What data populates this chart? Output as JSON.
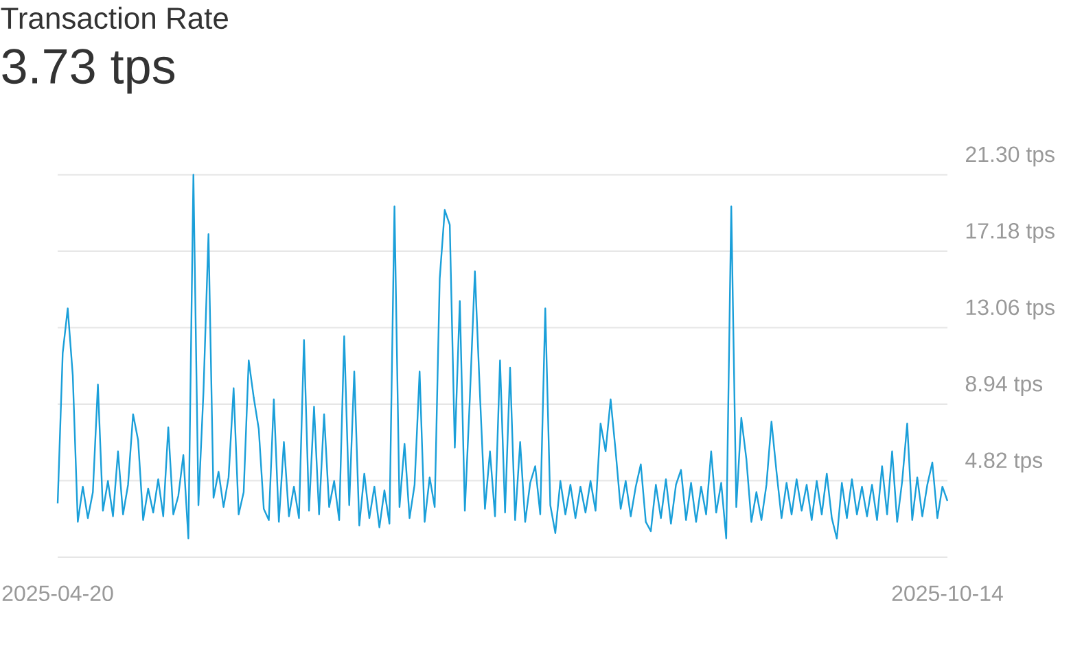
{
  "chart_data": {
    "type": "line",
    "title": "Transaction Rate",
    "subtitle": "3.73 tps",
    "grid": "y",
    "xlim": [
      "2025-04-20",
      "2025-10-14"
    ],
    "xticks": [
      {
        "value": "2025-04-20",
        "label": "2025-04-20"
      },
      {
        "value": "2025-10-14",
        "label": "2025-10-14"
      }
    ],
    "ylim": [
      0.7,
      21.3
    ],
    "yticks": [
      {
        "value": 0.7,
        "label": null
      },
      {
        "value": 4.82,
        "label": "4.82 tps"
      },
      {
        "value": 8.94,
        "label": "8.94 tps"
      },
      {
        "value": 13.06,
        "label": "13.06 tps"
      },
      {
        "value": 17.18,
        "label": "17.18 tps"
      },
      {
        "value": 21.3,
        "label": "21.30 tps"
      }
    ],
    "series": [
      {
        "color": "#1a9fd9",
        "x": [
          "2025-04-20",
          "2025-04-21",
          "2025-04-22",
          "2025-04-23",
          "2025-04-24",
          "2025-04-25",
          "2025-04-26",
          "2025-04-27",
          "2025-04-28",
          "2025-04-29",
          "2025-04-30",
          "2025-05-01",
          "2025-05-02",
          "2025-05-03",
          "2025-05-04",
          "2025-05-05",
          "2025-05-06",
          "2025-05-07",
          "2025-05-08",
          "2025-05-09",
          "2025-05-10",
          "2025-05-11",
          "2025-05-12",
          "2025-05-13",
          "2025-05-14",
          "2025-05-15",
          "2025-05-16",
          "2025-05-17",
          "2025-05-18",
          "2025-05-19",
          "2025-05-20",
          "2025-05-21",
          "2025-05-22",
          "2025-05-23",
          "2025-05-24",
          "2025-05-25",
          "2025-05-26",
          "2025-05-27",
          "2025-05-28",
          "2025-05-29",
          "2025-05-30",
          "2025-05-31",
          "2025-06-01",
          "2025-06-02",
          "2025-06-03",
          "2025-06-04",
          "2025-06-05",
          "2025-06-06",
          "2025-06-07",
          "2025-06-08",
          "2025-06-09",
          "2025-06-10",
          "2025-06-11",
          "2025-06-12",
          "2025-06-13",
          "2025-06-14",
          "2025-06-15",
          "2025-06-16",
          "2025-06-17",
          "2025-06-18",
          "2025-06-19",
          "2025-06-20",
          "2025-06-21",
          "2025-06-22",
          "2025-06-23",
          "2025-06-24",
          "2025-06-25",
          "2025-06-26",
          "2025-06-27",
          "2025-06-28",
          "2025-06-29",
          "2025-06-30",
          "2025-07-01",
          "2025-07-02",
          "2025-07-03",
          "2025-07-04",
          "2025-07-05",
          "2025-07-06",
          "2025-07-07",
          "2025-07-08",
          "2025-07-09",
          "2025-07-10",
          "2025-07-11",
          "2025-07-12",
          "2025-07-13",
          "2025-07-14",
          "2025-07-15",
          "2025-07-16",
          "2025-07-17",
          "2025-07-18",
          "2025-07-19",
          "2025-07-20",
          "2025-07-21",
          "2025-07-22",
          "2025-07-23",
          "2025-07-24",
          "2025-07-25",
          "2025-07-26",
          "2025-07-27",
          "2025-07-28",
          "2025-07-29",
          "2025-07-30",
          "2025-07-31",
          "2025-08-01",
          "2025-08-02",
          "2025-08-03",
          "2025-08-04",
          "2025-08-05",
          "2025-08-06",
          "2025-08-07",
          "2025-08-08",
          "2025-08-09",
          "2025-08-10",
          "2025-08-11",
          "2025-08-12",
          "2025-08-13",
          "2025-08-14",
          "2025-08-15",
          "2025-08-16",
          "2025-08-17",
          "2025-08-18",
          "2025-08-19",
          "2025-08-20",
          "2025-08-21",
          "2025-08-22",
          "2025-08-23",
          "2025-08-24",
          "2025-08-25",
          "2025-08-26",
          "2025-08-27",
          "2025-08-28",
          "2025-08-29",
          "2025-08-30",
          "2025-08-31",
          "2025-09-01",
          "2025-09-02",
          "2025-09-03",
          "2025-09-04",
          "2025-09-05",
          "2025-09-06",
          "2025-09-07",
          "2025-09-08",
          "2025-09-09",
          "2025-09-10",
          "2025-09-11",
          "2025-09-12",
          "2025-09-13",
          "2025-09-14",
          "2025-09-15",
          "2025-09-16",
          "2025-09-17",
          "2025-09-18",
          "2025-09-19",
          "2025-09-20",
          "2025-09-21",
          "2025-09-22",
          "2025-09-23",
          "2025-09-24",
          "2025-09-25",
          "2025-09-26",
          "2025-09-27",
          "2025-09-28",
          "2025-09-29",
          "2025-09-30",
          "2025-10-01",
          "2025-10-02",
          "2025-10-03",
          "2025-10-04",
          "2025-10-05",
          "2025-10-06",
          "2025-10-07",
          "2025-10-08",
          "2025-10-09",
          "2025-10-10",
          "2025-10-11",
          "2025-10-12",
          "2025-10-13",
          "2025-10-14"
        ],
        "values": [
          3.6,
          11.7,
          14.1,
          10.5,
          2.6,
          4.5,
          2.8,
          4.2,
          10.0,
          3.2,
          4.8,
          2.9,
          6.4,
          3.0,
          4.6,
          8.4,
          7.0,
          2.7,
          4.4,
          3.1,
          4.9,
          2.9,
          7.7,
          3.0,
          4.0,
          6.2,
          1.7,
          21.3,
          3.5,
          9.6,
          18.1,
          3.9,
          5.3,
          3.4,
          5.0,
          9.8,
          3.0,
          4.2,
          11.3,
          9.3,
          7.6,
          3.3,
          2.7,
          9.2,
          2.6,
          6.9,
          2.9,
          4.5,
          2.8,
          12.4,
          3.2,
          8.8,
          3.0,
          8.4,
          3.4,
          4.8,
          2.7,
          12.6,
          3.5,
          10.7,
          2.4,
          5.2,
          2.8,
          4.5,
          2.3,
          4.3,
          2.5,
          19.6,
          3.4,
          6.8,
          2.8,
          4.6,
          10.7,
          2.6,
          5.0,
          3.4,
          15.7,
          19.4,
          18.6,
          6.6,
          14.5,
          3.2,
          9.3,
          16.1,
          9.5,
          3.3,
          6.4,
          2.9,
          11.3,
          3.1,
          10.9,
          2.7,
          6.9,
          2.6,
          4.7,
          5.6,
          3.0,
          14.1,
          3.5,
          2.0,
          4.8,
          3.0,
          4.6,
          2.8,
          4.5,
          3.1,
          4.8,
          3.2,
          7.9,
          6.4,
          9.2,
          6.4,
          3.3,
          4.8,
          2.9,
          4.5,
          5.7,
          2.6,
          2.1,
          4.6,
          2.8,
          4.9,
          2.5,
          4.6,
          5.4,
          2.7,
          4.7,
          2.6,
          4.5,
          3.0,
          6.4,
          3.1,
          4.7,
          1.7,
          19.6,
          3.4,
          8.2,
          6.0,
          2.6,
          4.2,
          2.7,
          4.6,
          8.0,
          5.3,
          2.8,
          4.7,
          3.0,
          4.9,
          3.2,
          4.6,
          2.7,
          4.8,
          3.0,
          5.2,
          2.8,
          1.7,
          4.7,
          2.8,
          4.9,
          3.0,
          4.5,
          2.9,
          4.6,
          2.7,
          5.6,
          3.0,
          6.4,
          2.6,
          4.8,
          7.9,
          2.7,
          5.0,
          2.9,
          4.6,
          5.8,
          2.8,
          4.5,
          3.73
        ]
      }
    ]
  }
}
